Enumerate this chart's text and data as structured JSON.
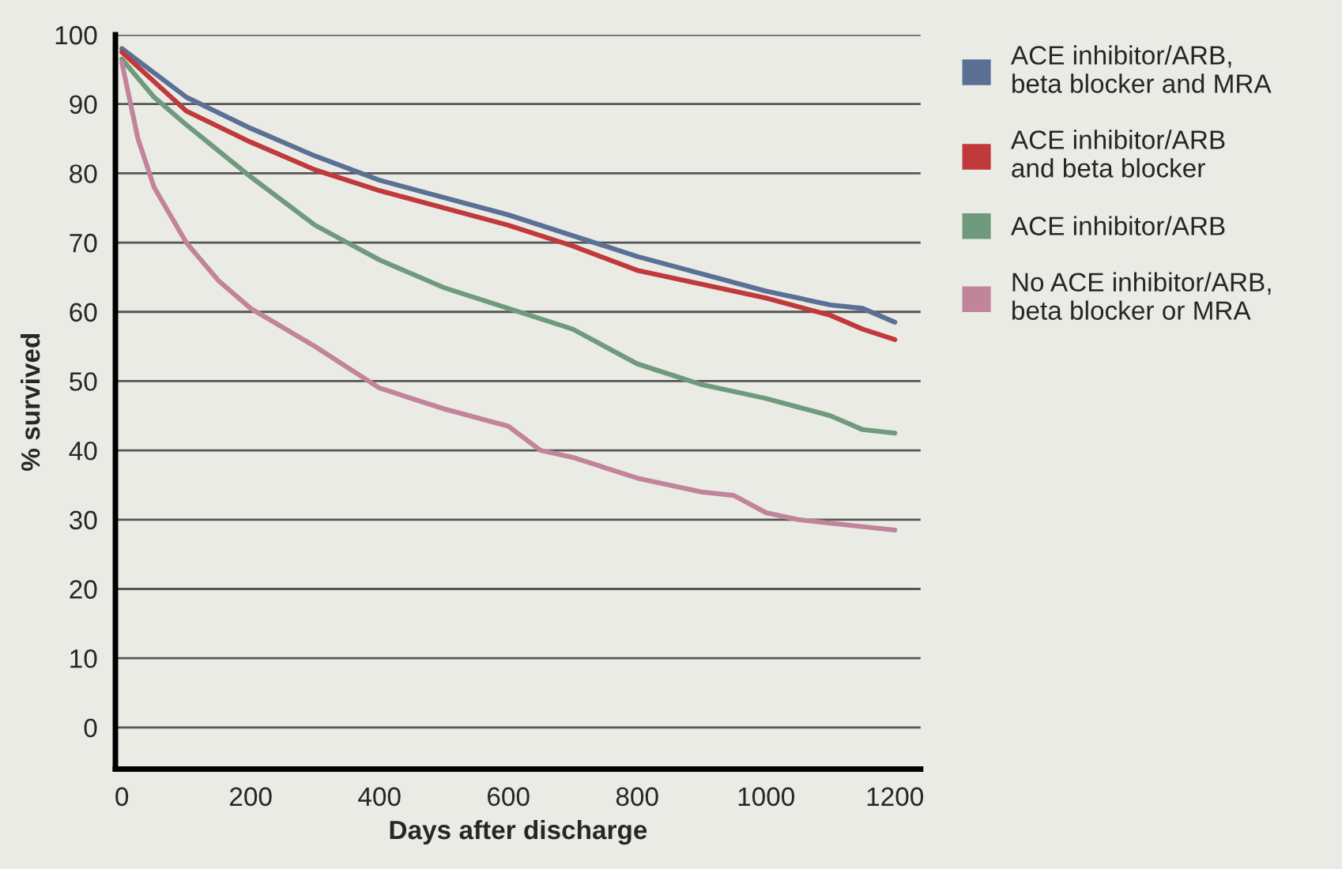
{
  "chart_data": {
    "type": "line",
    "xlabel": "Days after discharge",
    "ylabel": "% survived",
    "xlim": [
      -10,
      1240
    ],
    "ylim": [
      -6,
      100
    ],
    "xticks": [
      0,
      200,
      400,
      600,
      800,
      1000,
      1200
    ],
    "yticks": [
      0,
      10,
      20,
      30,
      40,
      50,
      60,
      70,
      80,
      90,
      100
    ],
    "grid": "y",
    "legend": "right",
    "marker": "none",
    "line_style": "solid",
    "series": [
      {
        "name": "ACE inhibitor/ARB,\nbeta blocker and MRA",
        "color": "#5a7094",
        "x": [
          0,
          100,
          200,
          300,
          400,
          600,
          800,
          1000,
          1100,
          1150,
          1200
        ],
        "values": [
          98,
          91,
          86.5,
          82.5,
          79,
          74,
          68,
          63,
          61,
          60.5,
          58.5
        ]
      },
      {
        "name": "ACE inhibitor/ARB\nand beta blocker",
        "color": "#c0393b",
        "x": [
          0,
          100,
          200,
          300,
          400,
          600,
          700,
          800,
          1000,
          1100,
          1150,
          1200
        ],
        "values": [
          97.5,
          89,
          84.5,
          80.5,
          77.5,
          72.5,
          69.5,
          66,
          62,
          59.5,
          57.5,
          56
        ]
      },
      {
        "name": "ACE inhibitor/ARB",
        "color": "#6f9a7d",
        "x": [
          0,
          50,
          100,
          200,
          300,
          350,
          400,
          500,
          600,
          700,
          800,
          900,
          1000,
          1100,
          1150,
          1200
        ],
        "values": [
          96.5,
          91,
          87,
          79.5,
          72.5,
          70,
          67.5,
          63.5,
          60.5,
          57.5,
          52.5,
          49.5,
          47.5,
          45,
          43,
          42.5
        ]
      },
      {
        "name": "No ACE inhibitor/ARB,\nbeta blocker or MRA",
        "color": "#c1849a",
        "x": [
          0,
          25,
          50,
          100,
          150,
          200,
          300,
          400,
          500,
          600,
          650,
          700,
          800,
          900,
          950,
          1000,
          1050,
          1100,
          1200
        ],
        "values": [
          96,
          85,
          78,
          70,
          64.5,
          60.5,
          55,
          49,
          46,
          43.5,
          40,
          39,
          36,
          34,
          33.5,
          31,
          30,
          29.5,
          28.5
        ]
      }
    ]
  }
}
